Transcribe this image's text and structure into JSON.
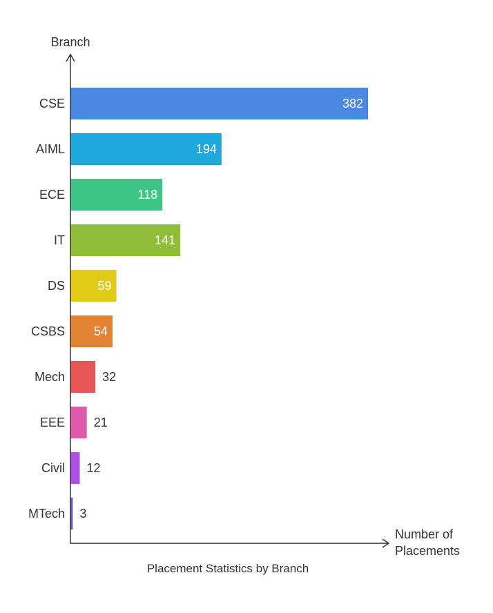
{
  "chart_data": {
    "type": "bar",
    "orientation": "horizontal",
    "title": "Placement Statistics by Branch",
    "xlabel": "Number of Placements",
    "ylabel": "Branch",
    "categories": [
      "CSE",
      "AIML",
      "ECE",
      "IT",
      "DS",
      "CSBS",
      "Mech",
      "EEE",
      "Civil",
      "MTech"
    ],
    "values": [
      382,
      194,
      118,
      141,
      59,
      54,
      32,
      21,
      12,
      3
    ],
    "colors": [
      "#4a88e4",
      "#1ea9dc",
      "#3cc586",
      "#8fbd3a",
      "#e0cb16",
      "#e28333",
      "#e65656",
      "#e25bab",
      "#ad4fe0",
      "#6f54cf"
    ],
    "xlim": [
      0,
      382
    ],
    "grid": false,
    "legend": "none"
  }
}
